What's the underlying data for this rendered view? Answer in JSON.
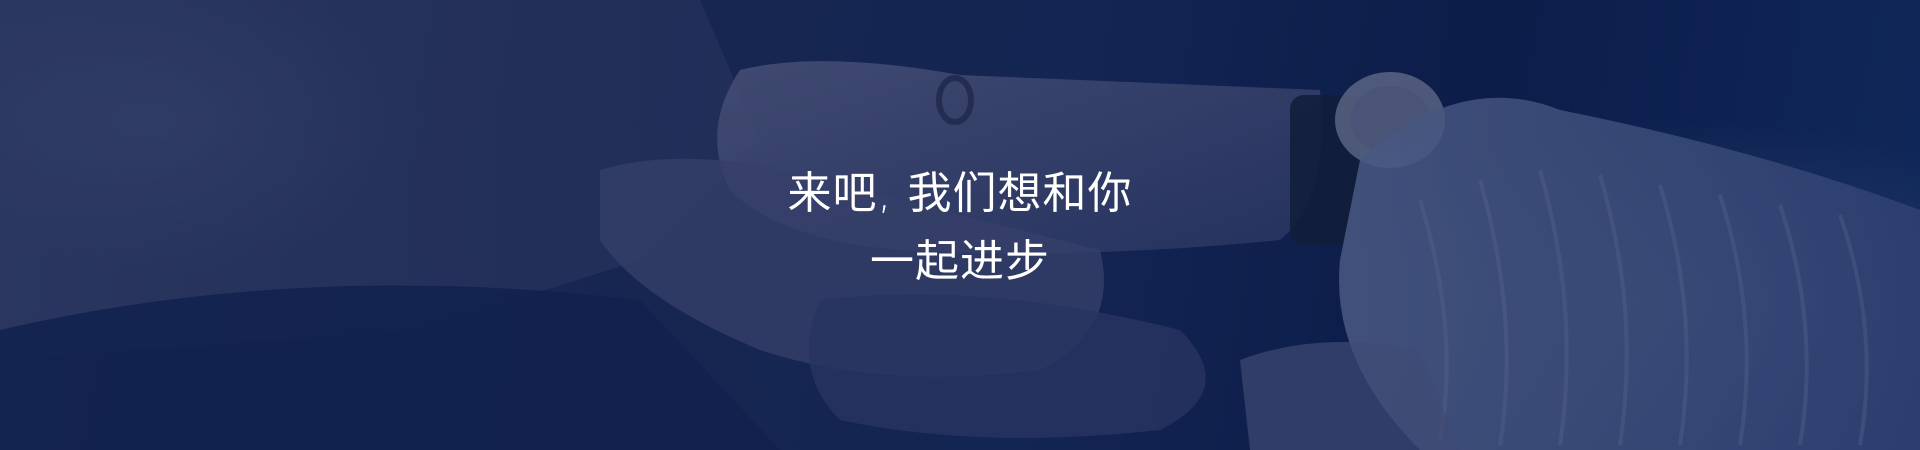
{
  "banner": {
    "headline_line1": "来吧, 我们想和你",
    "headline_line2": "一起进步",
    "background_image": "hands-stacked-together-photo",
    "overlay_color": "#0e1c48",
    "text_color": "#ffffff"
  }
}
